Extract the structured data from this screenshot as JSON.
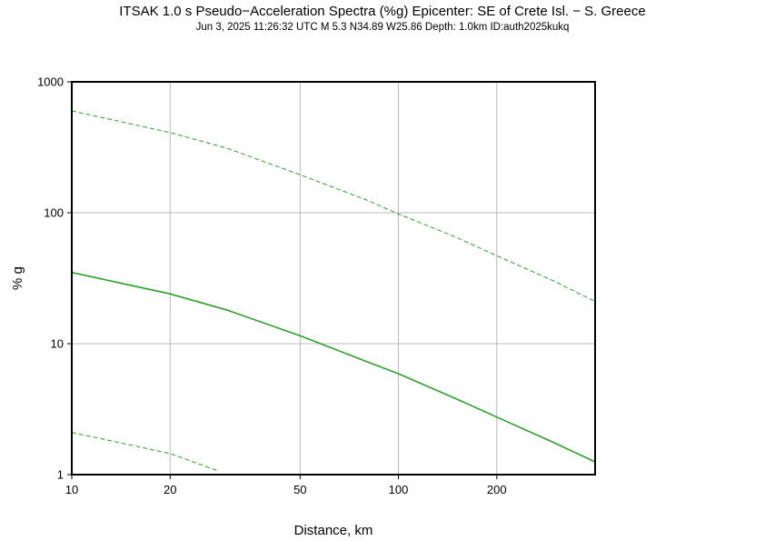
{
  "header": {
    "title": "ITSAK 1.0 s Pseudo−Acceleration Spectra (%g) Epicenter: SE of Crete Isl. − S. Greece",
    "subtitle": "Jun  3, 2025 11:26:32 UTC   M 5.3   N34.89 W25.86   Depth: 1.0km   ID:auth2025kukq"
  },
  "chart_data": {
    "type": "line",
    "title": "ITSAK 1.0 s Pseudo−Acceleration Spectra (%g) Epicenter: SE of Crete Isl. − S. Greece",
    "xlabel": "Distance, km",
    "ylabel": "% g",
    "xscale": "log",
    "yscale": "log",
    "xlim": [
      10,
      400
    ],
    "ylim": [
      1,
      1000
    ],
    "grid": true,
    "x_ticks": [
      "10",
      "20",
      "50",
      "100",
      "200"
    ],
    "x_tick_values": [
      10,
      20,
      50,
      100,
      200
    ],
    "y_ticks": [
      "1",
      "10",
      "100",
      "1000"
    ],
    "y_tick_values": [
      1,
      10,
      100,
      1000
    ],
    "colors": {
      "series": "#2ca02c",
      "grid": "#a8a8a8",
      "frame": "#000000"
    },
    "series": [
      {
        "style": "solid",
        "x": [
          10,
          20,
          30,
          50,
          80,
          100,
          150,
          200,
          300,
          400
        ],
        "y": [
          35,
          24,
          18,
          11.5,
          7.3,
          5.9,
          3.8,
          2.75,
          1.75,
          1.25
        ]
      },
      {
        "style": "dashed",
        "x": [
          10,
          20,
          30,
          50,
          80,
          100,
          150,
          200,
          300,
          400
        ],
        "y": [
          600,
          410,
          310,
          195,
          125,
          98,
          65,
          47,
          30,
          21
        ]
      },
      {
        "style": "dashed",
        "x": [
          10,
          20,
          28
        ],
        "y": [
          2.1,
          1.45,
          1.07
        ]
      }
    ]
  }
}
